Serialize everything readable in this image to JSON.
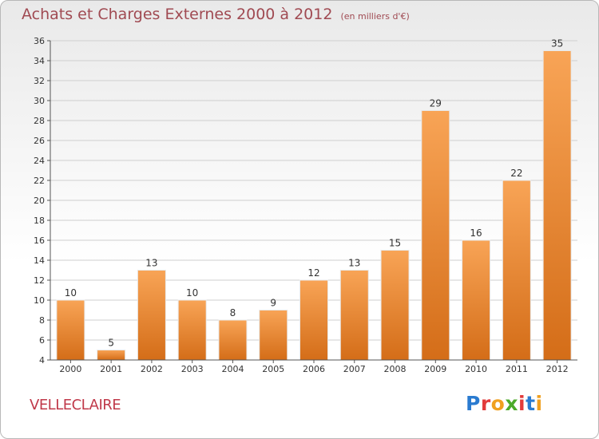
{
  "chart_data": {
    "type": "bar",
    "title": "Achats et Charges Externes 2000 à 2012",
    "subtitle": "(en milliers d'€)",
    "categories": [
      "2000",
      "2001",
      "2002",
      "2003",
      "2004",
      "2005",
      "2006",
      "2007",
      "2008",
      "2009",
      "2010",
      "2011",
      "2012"
    ],
    "values": [
      10,
      5,
      13,
      10,
      8,
      9,
      12,
      13,
      15,
      29,
      16,
      22,
      35
    ],
    "ylim": [
      4,
      36
    ],
    "yticks": [
      4,
      6,
      8,
      10,
      12,
      14,
      16,
      18,
      20,
      22,
      24,
      26,
      28,
      30,
      32,
      34,
      36
    ],
    "grid": true,
    "bar_color": "#f0902e"
  },
  "footer": {
    "commune": "VELLECLAIRE",
    "brand": "Proxiti"
  }
}
